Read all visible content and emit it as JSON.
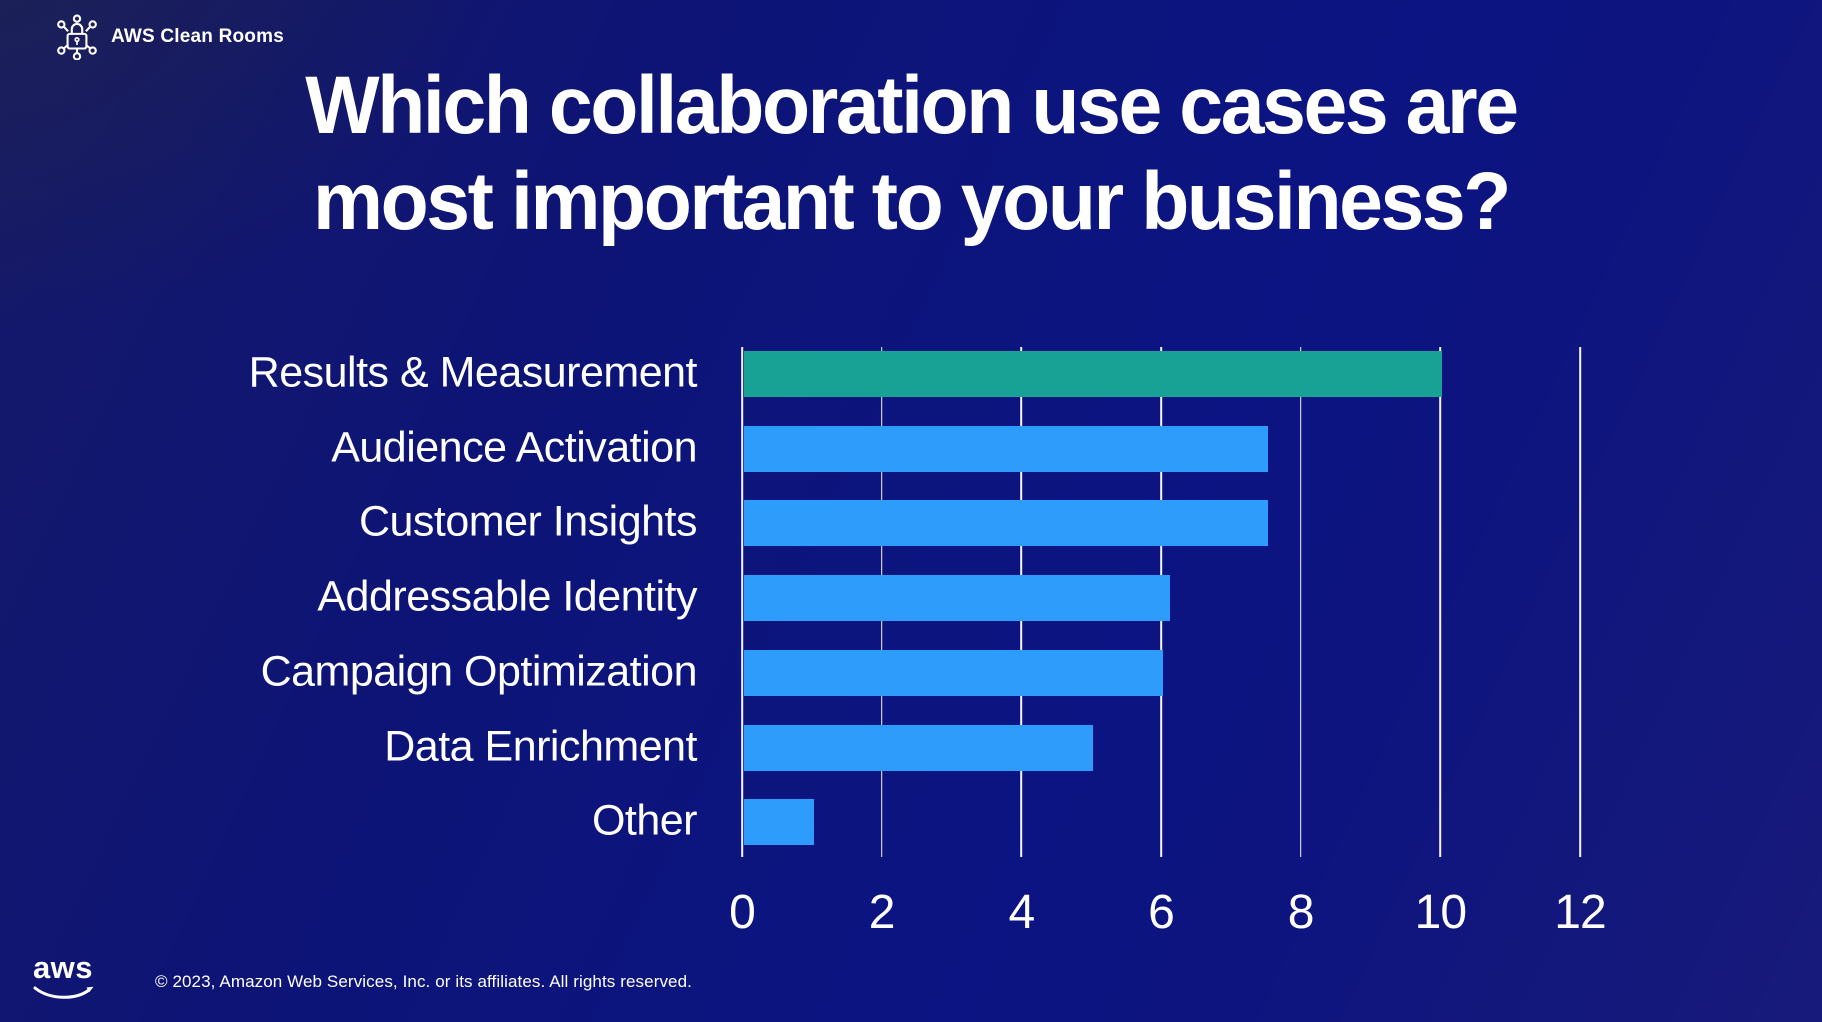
{
  "header": {
    "product_name": "AWS Clean Rooms"
  },
  "title": {
    "line1": "Which collaboration use cases are",
    "line2": "most important to your business?"
  },
  "chart_data": {
    "type": "bar",
    "orientation": "horizontal",
    "title": "Which collaboration use cases are most important to your business?",
    "categories": [
      "Results & Measurement",
      "Audience Activation",
      "Customer Insights",
      "Addressable Identity",
      "Campaign Optimization",
      "Data Enrichment",
      "Other"
    ],
    "values": [
      10,
      7.5,
      7.5,
      6.1,
      6,
      5,
      1
    ],
    "bar_colors": [
      "#18a295",
      "#2e9cfa",
      "#2e9cfa",
      "#2e9cfa",
      "#2e9cfa",
      "#2e9cfa",
      "#2e9cfa"
    ],
    "xlabel": "",
    "ylabel": "",
    "xlim": [
      0,
      12
    ],
    "xticks": [
      0,
      2,
      4,
      6,
      8,
      10,
      12
    ],
    "grid": "vertical",
    "gridline_color": "#ffffff",
    "legend": "none",
    "highlighted_category": "Results & Measurement"
  },
  "footer": {
    "aws_logo_text": "aws",
    "copyright": "© 2023, Amazon Web Services, Inc. or its affiliates. All rights reserved."
  },
  "colors": {
    "background": "#0d1480",
    "background_corner": "#1a1e4e",
    "highlight_bar": "#18a295",
    "default_bar": "#2e9cfa",
    "text": "#ffffff"
  }
}
